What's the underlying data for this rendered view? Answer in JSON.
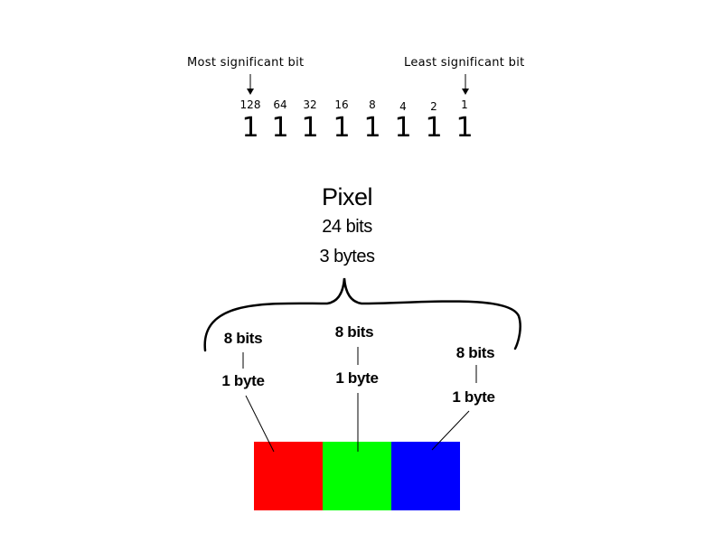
{
  "bit_row": {
    "msb_label": "Most significant bit",
    "lsb_label": "Least significant bit",
    "weights": [
      "128",
      "64",
      "32",
      "16",
      "8",
      "4",
      "2",
      "1"
    ],
    "bits": [
      "1",
      "1",
      "1",
      "1",
      "1",
      "1",
      "1",
      "1"
    ]
  },
  "pixel": {
    "title": "Pixel",
    "bits": "24 bits",
    "bytes": "3 bytes"
  },
  "channels": [
    {
      "bits": "8 bits",
      "bytes": "1 byte",
      "color": "#ff0000"
    },
    {
      "bits": "8 bits",
      "bytes": "1 byte",
      "color": "#00ff00"
    },
    {
      "bits": "8 bits",
      "bytes": "1 byte",
      "color": "#0000ff"
    }
  ]
}
